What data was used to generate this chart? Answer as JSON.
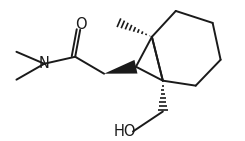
{
  "background": "#ffffff",
  "line_color": "#1a1a1a",
  "lw": 1.4,
  "figsize": [
    2.45,
    1.41
  ],
  "dpi": 100,
  "xlim": [
    0,
    245
  ],
  "ylim": [
    0,
    141
  ]
}
